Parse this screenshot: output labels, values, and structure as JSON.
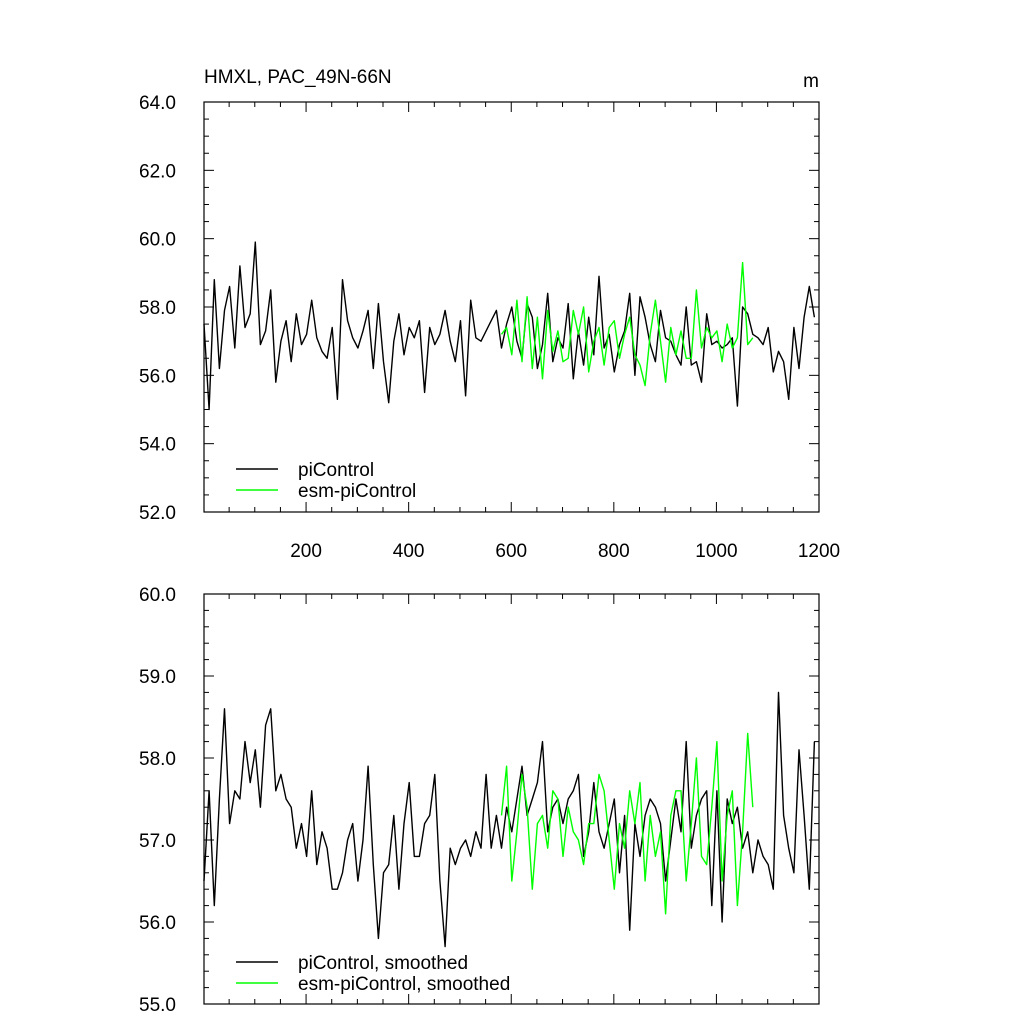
{
  "chart_data": [
    {
      "type": "line",
      "title": "HMXL, PAC_49N-66N",
      "units": "m",
      "xlim": [
        1,
        1200
      ],
      "ylim": [
        52.0,
        64.0
      ],
      "x_ticks": [
        "200",
        "400",
        "600",
        "800",
        "1000",
        "1200"
      ],
      "y_ticks": [
        "52.0",
        "54.0",
        "56.0",
        "58.0",
        "60.0",
        "62.0",
        "64.0"
      ],
      "series": [
        {
          "name": "piControl",
          "color": "#000000",
          "x_start": 1,
          "x_step": 10,
          "values": [
            57.5,
            55.0,
            58.8,
            56.2,
            57.9,
            58.6,
            56.8,
            59.2,
            57.4,
            57.8,
            59.9,
            56.9,
            57.3,
            58.5,
            55.8,
            57.0,
            57.6,
            56.4,
            57.8,
            56.9,
            57.2,
            58.2,
            57.1,
            56.7,
            56.5,
            57.4,
            55.3,
            58.8,
            57.6,
            57.1,
            56.8,
            57.3,
            57.9,
            56.2,
            58.1,
            56.4,
            55.2,
            57.0,
            57.8,
            56.6,
            57.4,
            57.1,
            57.6,
            55.5,
            57.4,
            56.9,
            57.2,
            57.9,
            57.0,
            56.4,
            57.6,
            55.4,
            58.2,
            57.1,
            57.0,
            57.3,
            57.6,
            57.9,
            56.8,
            57.5,
            58.0,
            57.0,
            56.5,
            58.1,
            57.7,
            56.2,
            56.9,
            58.4,
            56.4,
            57.1,
            56.8,
            58.1,
            55.9,
            57.3,
            56.3,
            57.7,
            56.6,
            58.9,
            56.8,
            57.2,
            56.1,
            56.9,
            57.3,
            58.4,
            56.0,
            58.3,
            57.7,
            56.9,
            56.4,
            57.9,
            57.1,
            57.0,
            56.6,
            56.3,
            58.0,
            56.3,
            56.4,
            55.8,
            57.8,
            56.9,
            57.0,
            56.8,
            56.9,
            57.1,
            55.1,
            58.0,
            57.8,
            57.2,
            57.1,
            56.9,
            57.4,
            56.1,
            56.7,
            56.4,
            55.3,
            57.4,
            56.2,
            57.7,
            58.6,
            57.7
          ]
        },
        {
          "name": "esm-piControl",
          "color": "#00ff00",
          "x_start": 581,
          "x_step": 10,
          "values": [
            57.2,
            57.4,
            56.6,
            58.2,
            56.4,
            58.3,
            56.2,
            57.7,
            55.9,
            57.9,
            56.7,
            57.3,
            56.4,
            56.5,
            57.9,
            57.2,
            58.0,
            56.1,
            57.0,
            57.4,
            56.3,
            57.4,
            57.6,
            56.5,
            57.2,
            57.7,
            56.6,
            56.3,
            55.7,
            57.2,
            58.2,
            57.0,
            55.8,
            57.4,
            56.6,
            57.3,
            56.5,
            56.5,
            58.5,
            56.8,
            57.4,
            57.1,
            57.3,
            56.4,
            57.5,
            56.8,
            57.1,
            59.3,
            56.9,
            57.1
          ]
        }
      ],
      "legend": [
        "piControl",
        "esm-piControl"
      ],
      "legend_position": "bottom-left"
    },
    {
      "type": "line",
      "xlim": [
        1,
        1200
      ],
      "ylim": [
        55.0,
        60.0
      ],
      "y_ticks": [
        "55.0",
        "56.0",
        "57.0",
        "58.0",
        "59.0",
        "60.0"
      ],
      "series": [
        {
          "name": "piControl, smoothed",
          "color": "#000000",
          "x_start": 1,
          "x_step": 10,
          "values": [
            56.5,
            57.6,
            56.2,
            57.5,
            58.6,
            57.2,
            57.6,
            57.5,
            58.2,
            57.7,
            58.1,
            57.4,
            58.4,
            58.6,
            57.6,
            57.8,
            57.5,
            57.4,
            56.9,
            57.2,
            56.8,
            57.6,
            56.7,
            57.1,
            56.9,
            56.4,
            56.4,
            56.6,
            57.0,
            57.2,
            56.5,
            57.0,
            57.9,
            56.7,
            55.8,
            56.6,
            56.7,
            57.3,
            56.4,
            57.2,
            57.7,
            56.8,
            56.8,
            57.2,
            57.3,
            57.8,
            56.5,
            55.7,
            56.9,
            56.7,
            56.9,
            57.0,
            56.8,
            57.1,
            56.9,
            57.8,
            56.9,
            57.3,
            56.9,
            57.4,
            57.1,
            57.5,
            57.9,
            57.3,
            57.5,
            57.7,
            58.2,
            57.1,
            57.4,
            57.5,
            57.2,
            57.5,
            57.6,
            57.8,
            56.8,
            57.1,
            57.7,
            57.1,
            56.9,
            57.2,
            57.5,
            56.6,
            57.3,
            55.9,
            57.2,
            56.8,
            57.3,
            57.5,
            57.4,
            57.2,
            56.5,
            57.0,
            57.5,
            57.1,
            58.2,
            56.9,
            57.3,
            57.5,
            57.6,
            56.2,
            57.6,
            56.0,
            57.5,
            57.2,
            57.4,
            56.9,
            57.1,
            56.6,
            57.0,
            56.8,
            56.7,
            56.4,
            58.8,
            57.3,
            56.9,
            56.6,
            58.1,
            57.3,
            56.4,
            58.2
          ]
        },
        {
          "name": "esm-piControl, smoothed",
          "color": "#00ff00",
          "x_start": 581,
          "x_step": 10,
          "values": [
            57.3,
            57.9,
            56.5,
            57.1,
            57.8,
            57.4,
            56.4,
            57.2,
            57.3,
            56.9,
            57.6,
            57.5,
            56.8,
            57.4,
            57.1,
            57.0,
            56.7,
            57.2,
            57.2,
            57.8,
            57.6,
            57.0,
            56.4,
            57.2,
            56.9,
            57.6,
            57.2,
            57.7,
            56.5,
            57.3,
            56.8,
            57.1,
            56.1,
            57.3,
            57.6,
            57.6,
            56.5,
            57.2,
            58.0,
            56.8,
            56.7,
            57.4,
            58.2,
            56.5,
            57.3,
            57.6,
            56.2,
            57.1,
            58.3,
            57.4
          ]
        }
      ],
      "legend": [
        "piControl, smoothed",
        "esm-piControl, smoothed"
      ],
      "legend_position": "bottom-left"
    }
  ]
}
